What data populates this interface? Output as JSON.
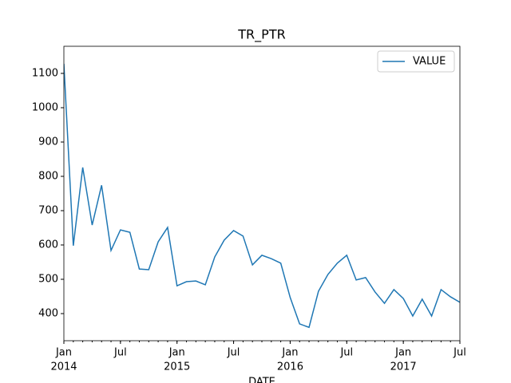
{
  "chart_data": {
    "type": "line",
    "title": "TR_PTR",
    "x_label": "DATE",
    "x": [
      "2014-01",
      "2014-02",
      "2014-03",
      "2014-04",
      "2014-05",
      "2014-06",
      "2014-07",
      "2014-08",
      "2014-09",
      "2014-10",
      "2014-11",
      "2014-12",
      "2015-01",
      "2015-02",
      "2015-03",
      "2015-04",
      "2015-05",
      "2015-06",
      "2015-07",
      "2015-08",
      "2015-09",
      "2015-10",
      "2015-11",
      "2015-12",
      "2016-01",
      "2016-02",
      "2016-03",
      "2016-04",
      "2016-05",
      "2016-06",
      "2016-07",
      "2016-08",
      "2016-09",
      "2016-10",
      "2016-11",
      "2016-12",
      "2017-01",
      "2017-02",
      "2017-03",
      "2017-04",
      "2017-05",
      "2017-06",
      "2017-07"
    ],
    "series": [
      {
        "name": "VALUE",
        "color": "#1f77b4",
        "values": [
          1128,
          598,
          826,
          658,
          774,
          584,
          644,
          637,
          530,
          528,
          609,
          651,
          481,
          493,
          495,
          484,
          565,
          614,
          642,
          626,
          542,
          570,
          560,
          547,
          447,
          370,
          360,
          465,
          514,
          547,
          570,
          498,
          505,
          463,
          430,
          470,
          444,
          393,
          442,
          393,
          470,
          449,
          433
        ]
      }
    ],
    "xlim": [
      "2014-01",
      "2017-07"
    ],
    "xticks": [
      {
        "value": "2014-01",
        "label": "Jan"
      },
      {
        "value": "2014-07",
        "label": "Jul"
      },
      {
        "value": "2015-01",
        "label": "Jan"
      },
      {
        "value": "2015-07",
        "label": "Jul"
      },
      {
        "value": "2016-01",
        "label": "Jan"
      },
      {
        "value": "2016-07",
        "label": "Jul"
      },
      {
        "value": "2017-01",
        "label": "Jan"
      },
      {
        "value": "2017-07",
        "label": "Jul"
      }
    ],
    "xticks_year": [
      {
        "value": "2014-01",
        "label": "2014"
      },
      {
        "value": "2015-01",
        "label": "2015"
      },
      {
        "value": "2016-01",
        "label": "2016"
      },
      {
        "value": "2017-01",
        "label": "2017"
      }
    ],
    "ylim": [
      321,
      1179
    ],
    "yticks": [
      400,
      500,
      600,
      700,
      800,
      900,
      1000,
      1100
    ],
    "grid": false,
    "legend": "upper right"
  }
}
